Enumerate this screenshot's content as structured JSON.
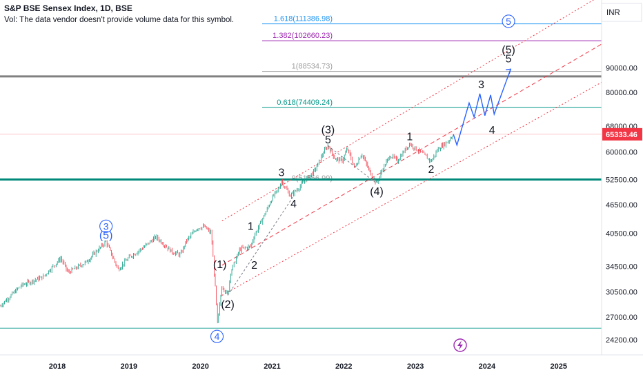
{
  "legend": {
    "title": "S&P BSE Sensex Index, 1D, BSE",
    "volume_note": "Vol: The data vendor doesn't provide volume data for this symbol."
  },
  "currency": "INR",
  "last_price": {
    "value": "65333.46",
    "color": "#f23645"
  },
  "colors": {
    "up": "#089981",
    "down": "#f23645",
    "teal": "#00897b",
    "fib_1618": "#2196f3",
    "fib_1382": "#9c27b0",
    "fib_1": "#9e9e9e",
    "fib_0618": "#009688",
    "channel": "#f23645",
    "projection": "#2962ff",
    "wave_blue": "#2962ff",
    "support": "#26a69a"
  },
  "chart_data": {
    "type": "line",
    "title": "S&P BSE Sensex Index, 1D, BSE",
    "y_axis": {
      "scale": "log",
      "tick_labels": [
        "90000.00",
        "80000.00",
        "68000.00",
        "60000.00",
        "52500.00",
        "46500.00",
        "40500.00",
        "34500.00",
        "30500.00",
        "27000.00",
        "24200.00"
      ],
      "range": [
        22500,
        125000
      ]
    },
    "x_axis": {
      "tick_labels": [
        "2018",
        "2019",
        "2020",
        "2021",
        "2022",
        "2023",
        "2024",
        "2025"
      ],
      "range": [
        2017.2,
        2025.6
      ]
    },
    "price_path": [
      [
        2017.2,
        28500
      ],
      [
        2017.5,
        31500
      ],
      [
        2017.8,
        32800
      ],
      [
        2018.05,
        35900
      ],
      [
        2018.15,
        33500
      ],
      [
        2018.4,
        35200
      ],
      [
        2018.68,
        38900
      ],
      [
        2018.85,
        34000
      ],
      [
        2019.0,
        36000
      ],
      [
        2019.2,
        37800
      ],
      [
        2019.38,
        39800
      ],
      [
        2019.6,
        37000
      ],
      [
        2019.72,
        36500
      ],
      [
        2019.8,
        39000
      ],
      [
        2019.95,
        41500
      ],
      [
        2020.05,
        41800
      ],
      [
        2020.15,
        40500
      ],
      [
        2020.22,
        29000
      ],
      [
        2020.23,
        25600
      ],
      [
        2020.3,
        31500
      ],
      [
        2020.38,
        30000
      ],
      [
        2020.42,
        33500
      ],
      [
        2020.55,
        37500
      ],
      [
        2020.7,
        38000
      ],
      [
        2020.75,
        40000
      ],
      [
        2020.9,
        44500
      ],
      [
        2021.0,
        48000
      ],
      [
        2021.1,
        50500
      ],
      [
        2021.13,
        52200
      ],
      [
        2021.25,
        48500
      ],
      [
        2021.35,
        50000
      ],
      [
        2021.47,
        52500
      ],
      [
        2021.6,
        55000
      ],
      [
        2021.72,
        60000
      ],
      [
        2021.78,
        61800
      ],
      [
        2021.88,
        58000
      ],
      [
        2021.98,
        57500
      ],
      [
        2022.05,
        61000
      ],
      [
        2022.15,
        55500
      ],
      [
        2022.25,
        59500
      ],
      [
        2022.35,
        55000
      ],
      [
        2022.46,
        51500
      ],
      [
        2022.55,
        55500
      ],
      [
        2022.65,
        59000
      ],
      [
        2022.75,
        57500
      ],
      [
        2022.92,
        62500
      ],
      [
        2023.0,
        61000
      ],
      [
        2023.1,
        59500
      ],
      [
        2023.22,
        57300
      ],
      [
        2023.32,
        61000
      ],
      [
        2023.45,
        63000
      ],
      [
        2023.53,
        65333
      ]
    ],
    "projection_path": [
      [
        2023.53,
        65333
      ],
      [
        2023.58,
        62000
      ],
      [
        2023.75,
        76000
      ],
      [
        2023.82,
        71000
      ],
      [
        2023.9,
        79500
      ],
      [
        2023.97,
        71500
      ],
      [
        2024.05,
        79000
      ],
      [
        2024.1,
        72000
      ],
      [
        2024.33,
        89500
      ]
    ],
    "fib_levels": [
      {
        "label": "1.618(111386.98)",
        "value": 111386.98
      },
      {
        "label": "1.382(102660.23)",
        "value": 102660.23
      },
      {
        "label": "1(88534.73)",
        "value": 88534.73
      },
      {
        "label": "0.618(74409.24)",
        "value": 74409.24
      },
      {
        "label": "0(51556.99)",
        "value": 51556.99
      }
    ],
    "horizontal_lines": [
      {
        "value": 86400,
        "style": "thick-gray"
      },
      {
        "value": 52500,
        "style": "thick-teal"
      },
      {
        "value": 25600,
        "style": "thin-teal"
      }
    ],
    "wave_labels": [
      {
        "text": "3",
        "x": 2018.68,
        "y": 41900,
        "circled": true
      },
      {
        "text": "(5)",
        "x": 2018.68,
        "y": 40200
      },
      {
        "text": "4",
        "x": 2020.23,
        "y": 24600,
        "circled": true
      },
      {
        "text": "(1)",
        "x": 2020.27,
        "y": 34900
      },
      {
        "text": "(2)",
        "x": 2020.38,
        "y": 28800
      },
      {
        "text": "1",
        "x": 2020.7,
        "y": 42000
      },
      {
        "text": "2",
        "x": 2020.75,
        "y": 34800
      },
      {
        "text": "3",
        "x": 2021.13,
        "y": 54500
      },
      {
        "text": "4",
        "x": 2021.3,
        "y": 46800
      },
      {
        "text": "(3)",
        "x": 2021.78,
        "y": 67000
      },
      {
        "text": "5",
        "x": 2021.78,
        "y": 63800
      },
      {
        "text": "(4)",
        "x": 2022.46,
        "y": 49700
      },
      {
        "text": "1",
        "x": 2022.92,
        "y": 64800
      },
      {
        "text": "2",
        "x": 2023.22,
        "y": 55300
      },
      {
        "text": "3",
        "x": 2023.92,
        "y": 83300
      },
      {
        "text": "4",
        "x": 2024.07,
        "y": 66800
      },
      {
        "text": "(5)",
        "x": 2024.3,
        "y": 98600
      },
      {
        "text": "5",
        "x": 2024.3,
        "y": 94400
      },
      {
        "text": "5",
        "x": 2024.3,
        "y": 112800,
        "circled": true
      }
    ],
    "channel_lines": [
      {
        "from": [
          2020.3,
          30000
        ],
        "to": [
          2025.6,
          84000
        ],
        "style": "dotted"
      },
      {
        "from": [
          2020.3,
          34700
        ],
        "to": [
          2025.6,
          101000
        ],
        "style": "dashed"
      },
      {
        "from": [
          2020.3,
          43000
        ],
        "to": [
          2025.6,
          128000
        ],
        "style": "dotted"
      }
    ],
    "wave_connectors": [
      {
        "from": [
          2020.38,
          30000
        ],
        "to": [
          2021.3,
          48500
        ]
      },
      {
        "from": [
          2021.78,
          61800
        ],
        "to": [
          2022.46,
          51500
        ]
      }
    ],
    "grid": false,
    "legend": "top-left"
  }
}
